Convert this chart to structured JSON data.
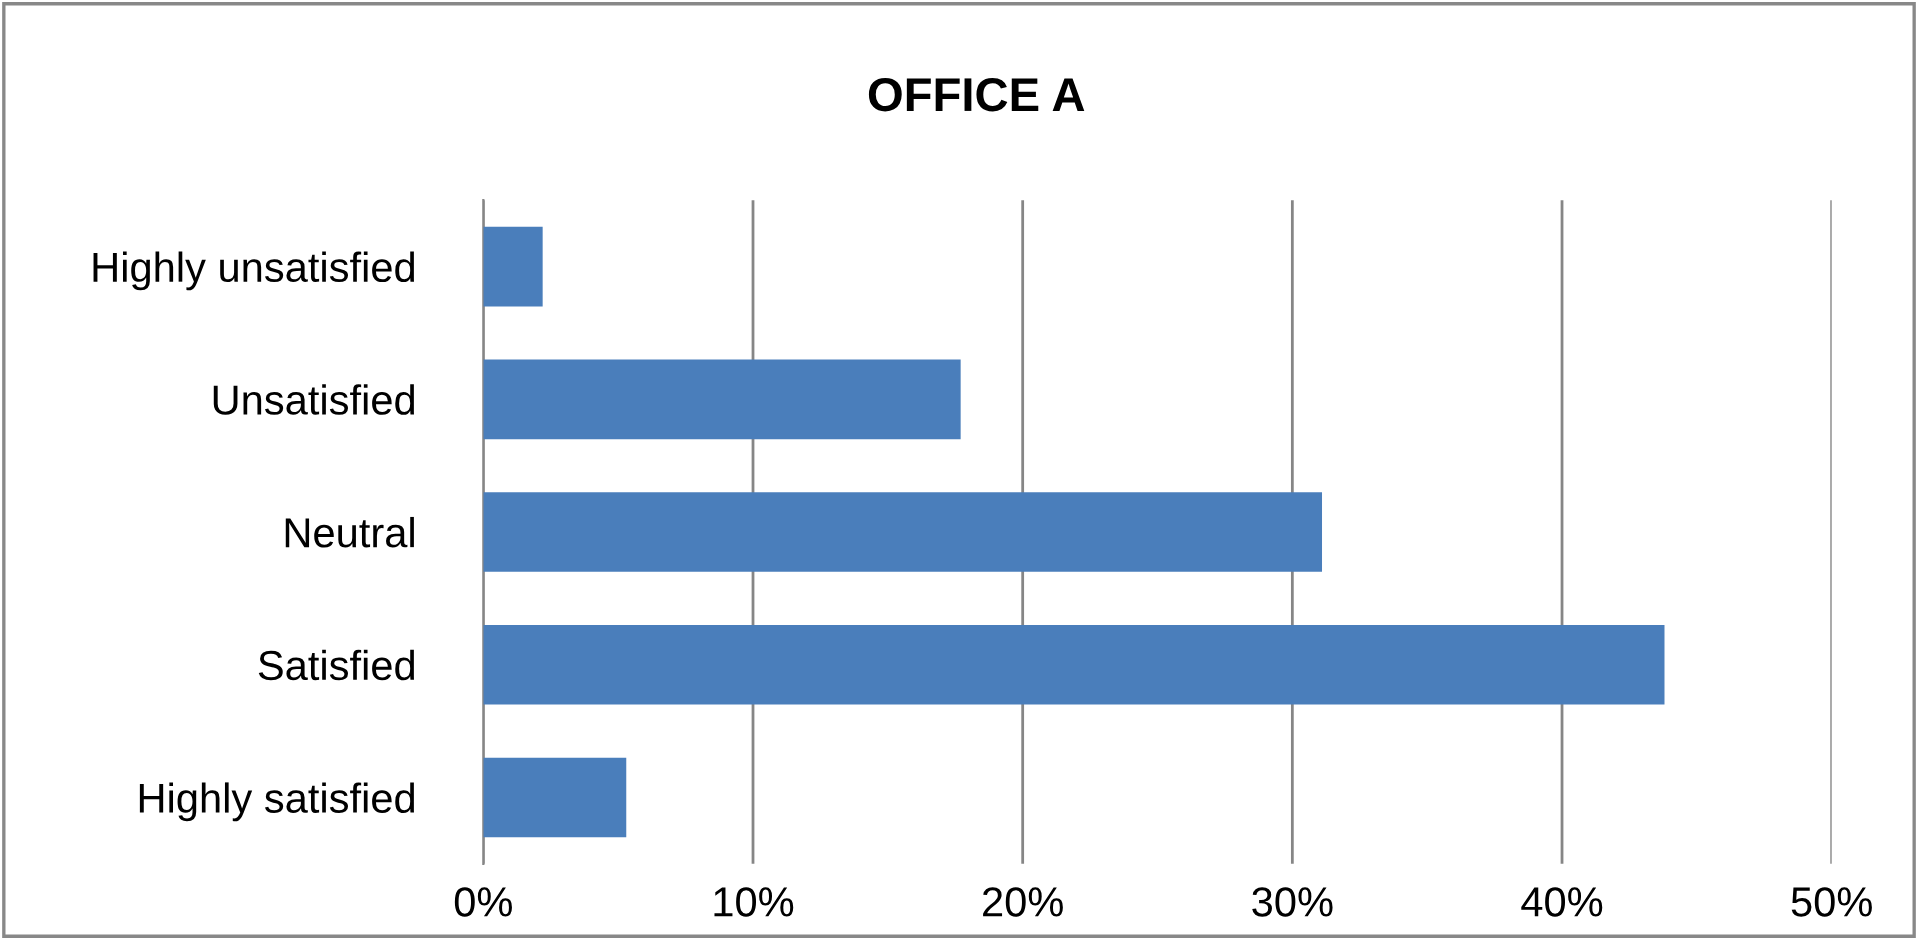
{
  "chart_data": {
    "type": "bar",
    "orientation": "horizontal",
    "title": "OFFICE A",
    "categories": [
      "Highly unsatisfied",
      "Unsatisfied",
      "Neutral",
      "Satisfied",
      "Highly satisfied"
    ],
    "values": [
      2.2,
      17.7,
      31.1,
      43.8,
      5.3
    ],
    "color": "#4a7ebb",
    "xlim": [
      0,
      50
    ],
    "xticks": [
      {
        "value": 0,
        "label": "0%"
      },
      {
        "value": 10,
        "label": "10%"
      },
      {
        "value": 20,
        "label": "20%"
      },
      {
        "value": 30,
        "label": "30%"
      },
      {
        "value": 40,
        "label": "40%"
      },
      {
        "value": 50,
        "label": "50%"
      }
    ],
    "grid": "x",
    "legend": false
  }
}
